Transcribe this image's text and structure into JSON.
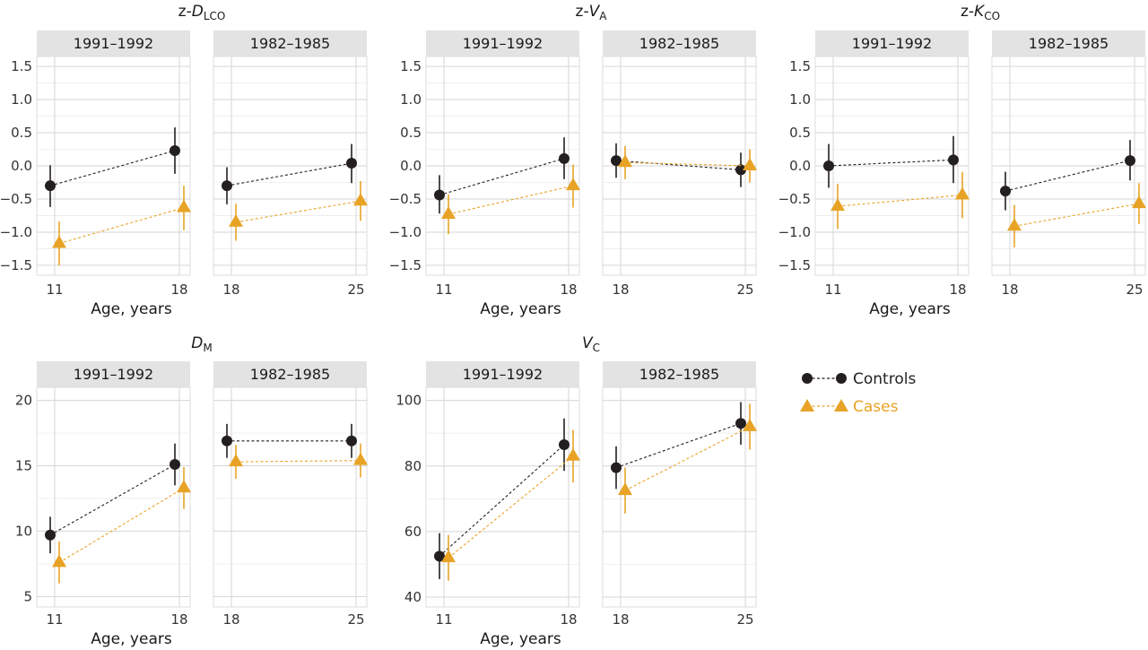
{
  "colors": {
    "controls": "#231f20",
    "cases": "#e8a326",
    "strip": "#e3e3e3",
    "grid": "#dcdcdc"
  },
  "legend": {
    "controls_label": "Controls",
    "cases_label": "Cases"
  },
  "chart_data": [
    {
      "type": "line",
      "title_prefix": "z-",
      "title_main": "D",
      "title_sub": "LCO",
      "xlabel": "Age, years",
      "ylabel": "",
      "ylim": [
        -1.65,
        1.65
      ],
      "yticks": [
        -1.5,
        -1.0,
        -0.5,
        0.0,
        0.5,
        1.0,
        1.5
      ],
      "ytick_labels": [
        "−1.5",
        "−1.0",
        "−0.5",
        "0.0",
        "0.5",
        "1.0",
        "1.5"
      ],
      "grid": true,
      "facets": [
        {
          "label": "1991–1992",
          "x": [
            11,
            18
          ],
          "x_ticks": [
            "11",
            "18"
          ],
          "series": [
            {
              "name": "Controls",
              "marker": "circle",
              "values": [
                -0.3,
                0.23
              ],
              "lower": [
                -0.62,
                -0.12
              ],
              "upper": [
                0.01,
                0.58
              ]
            },
            {
              "name": "Cases",
              "marker": "triangle",
              "values": [
                -1.17,
                -0.63
              ],
              "lower": [
                -1.5,
                -0.97
              ],
              "upper": [
                -0.84,
                -0.3
              ]
            }
          ]
        },
        {
          "label": "1982–1985",
          "x": [
            18,
            25
          ],
          "x_ticks": [
            "18",
            "25"
          ],
          "series": [
            {
              "name": "Controls",
              "marker": "circle",
              "values": [
                -0.3,
                0.04
              ],
              "lower": [
                -0.58,
                -0.26
              ],
              "upper": [
                -0.02,
                0.33
              ]
            },
            {
              "name": "Cases",
              "marker": "triangle",
              "values": [
                -0.85,
                -0.53
              ],
              "lower": [
                -1.13,
                -0.83
              ],
              "upper": [
                -0.57,
                -0.23
              ]
            }
          ]
        }
      ]
    },
    {
      "type": "line",
      "title_prefix": "z-",
      "title_main": "V",
      "title_sub": "A",
      "xlabel": "Age, years",
      "ylabel": "",
      "ylim": [
        -1.65,
        1.65
      ],
      "yticks": [
        -1.5,
        -1.0,
        -0.5,
        0.0,
        0.5,
        1.0,
        1.5
      ],
      "ytick_labels": [
        "−1.5",
        "−1.0",
        "−0.5",
        "0.0",
        "0.5",
        "1.0",
        "1.5"
      ],
      "grid": true,
      "facets": [
        {
          "label": "1991–1992",
          "x": [
            11,
            18
          ],
          "x_ticks": [
            "11",
            "18"
          ],
          "series": [
            {
              "name": "Controls",
              "marker": "circle",
              "values": [
                -0.44,
                0.11
              ],
              "lower": [
                -0.72,
                -0.2
              ],
              "upper": [
                -0.14,
                0.43
              ]
            },
            {
              "name": "Cases",
              "marker": "triangle",
              "values": [
                -0.73,
                -0.3
              ],
              "lower": [
                -1.03,
                -0.63
              ],
              "upper": [
                -0.43,
                0.02
              ]
            }
          ]
        },
        {
          "label": "1982–1985",
          "x": [
            18,
            25
          ],
          "x_ticks": [
            "18",
            "25"
          ],
          "series": [
            {
              "name": "Controls",
              "marker": "circle",
              "values": [
                0.08,
                -0.06
              ],
              "lower": [
                -0.18,
                -0.32
              ],
              "upper": [
                0.34,
                0.2
              ]
            },
            {
              "name": "Cases",
              "marker": "triangle",
              "values": [
                0.05,
                0.0
              ],
              "lower": [
                -0.2,
                -0.25
              ],
              "upper": [
                0.3,
                0.25
              ]
            }
          ]
        }
      ]
    },
    {
      "type": "line",
      "title_prefix": "z-",
      "title_main": "K",
      "title_sub": "CO",
      "xlabel": "Age, years",
      "ylabel": "",
      "ylim": [
        -1.65,
        1.65
      ],
      "yticks": [
        -1.5,
        -1.0,
        -0.5,
        0.0,
        0.5,
        1.0,
        1.5
      ],
      "ytick_labels": [
        "−1.5",
        "−1.0",
        "−0.5",
        "0.0",
        "0.5",
        "1.0",
        "1.5"
      ],
      "grid": true,
      "facets": [
        {
          "label": "1991–1992",
          "x": [
            11,
            18
          ],
          "x_ticks": [
            "11",
            "18"
          ],
          "series": [
            {
              "name": "Controls",
              "marker": "circle",
              "values": [
                0.0,
                0.09
              ],
              "lower": [
                -0.33,
                -0.26
              ],
              "upper": [
                0.33,
                0.45
              ]
            },
            {
              "name": "Cases",
              "marker": "triangle",
              "values": [
                -0.61,
                -0.44
              ],
              "lower": [
                -0.95,
                -0.79
              ],
              "upper": [
                -0.27,
                -0.09
              ]
            }
          ]
        },
        {
          "label": "1982–1985",
          "x": [
            18,
            25
          ],
          "x_ticks": [
            "18",
            "25"
          ],
          "series": [
            {
              "name": "Controls",
              "marker": "circle",
              "values": [
                -0.38,
                0.08
              ],
              "lower": [
                -0.67,
                -0.22
              ],
              "upper": [
                -0.09,
                0.39
              ]
            },
            {
              "name": "Cases",
              "marker": "triangle",
              "values": [
                -0.91,
                -0.57
              ],
              "lower": [
                -1.23,
                -0.88
              ],
              "upper": [
                -0.59,
                -0.26
              ]
            }
          ]
        }
      ]
    },
    {
      "type": "line",
      "title_prefix": "",
      "title_main": "D",
      "title_sub": "M",
      "xlabel": "Age, years",
      "ylabel": "",
      "ylim": [
        4.2,
        21.0
      ],
      "yticks": [
        5,
        10,
        15,
        20
      ],
      "ytick_labels": [
        "5",
        "10",
        "15",
        "20"
      ],
      "grid": true,
      "facets": [
        {
          "label": "1991–1992",
          "x": [
            11,
            18
          ],
          "x_ticks": [
            "11",
            "18"
          ],
          "series": [
            {
              "name": "Controls",
              "marker": "circle",
              "values": [
                9.7,
                15.1
              ],
              "lower": [
                8.3,
                13.5
              ],
              "upper": [
                11.1,
                16.7
              ]
            },
            {
              "name": "Cases",
              "marker": "triangle",
              "values": [
                7.6,
                13.3
              ],
              "lower": [
                6.0,
                11.7
              ],
              "upper": [
                9.2,
                14.9
              ]
            }
          ]
        },
        {
          "label": "1982–1985",
          "x": [
            18,
            25
          ],
          "x_ticks": [
            "18",
            "25"
          ],
          "series": [
            {
              "name": "Controls",
              "marker": "circle",
              "values": [
                16.9,
                16.9
              ],
              "lower": [
                15.6,
                15.6
              ],
              "upper": [
                18.2,
                18.2
              ]
            },
            {
              "name": "Cases",
              "marker": "triangle",
              "values": [
                15.3,
                15.4
              ],
              "lower": [
                14.0,
                14.1
              ],
              "upper": [
                16.6,
                16.7
              ]
            }
          ]
        }
      ]
    },
    {
      "type": "line",
      "title_prefix": "",
      "title_main": "V",
      "title_sub": "C",
      "xlabel": "Age, years",
      "ylabel": "",
      "ylim": [
        37,
        104
      ],
      "yticks": [
        40,
        60,
        80,
        100
      ],
      "ytick_labels": [
        "40",
        "60",
        "80",
        "100"
      ],
      "grid": true,
      "facets": [
        {
          "label": "1991–1992",
          "x": [
            11,
            18
          ],
          "x_ticks": [
            "11",
            "18"
          ],
          "series": [
            {
              "name": "Controls",
              "marker": "circle",
              "values": [
                52.5,
                86.5
              ],
              "lower": [
                45.5,
                78.5
              ],
              "upper": [
                59.5,
                94.5
              ]
            },
            {
              "name": "Cases",
              "marker": "triangle",
              "values": [
                52.0,
                83.0
              ],
              "lower": [
                45.0,
                75.0
              ],
              "upper": [
                59.0,
                91.0
              ]
            }
          ]
        },
        {
          "label": "1982–1985",
          "x": [
            18,
            25
          ],
          "x_ticks": [
            "18",
            "25"
          ],
          "series": [
            {
              "name": "Controls",
              "marker": "circle",
              "values": [
                79.5,
                93.0
              ],
              "lower": [
                73.0,
                86.5
              ],
              "upper": [
                86.0,
                99.5
              ]
            },
            {
              "name": "Cases",
              "marker": "triangle",
              "values": [
                72.5,
                92.0
              ],
              "lower": [
                65.5,
                85.0
              ],
              "upper": [
                79.5,
                99.0
              ]
            }
          ]
        }
      ]
    }
  ]
}
